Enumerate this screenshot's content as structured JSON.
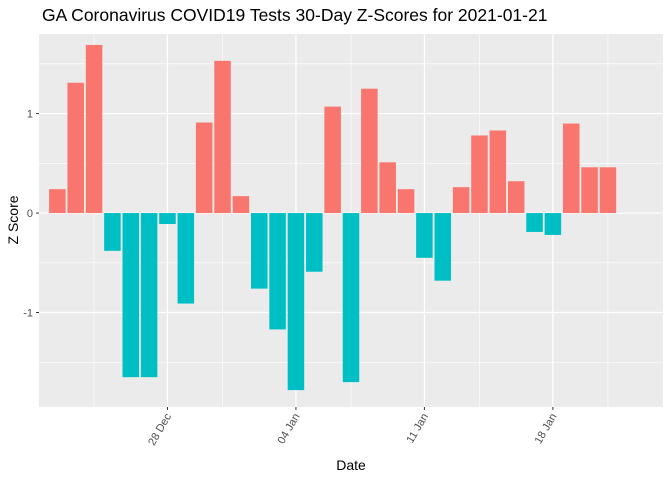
{
  "chart_data": {
    "type": "bar",
    "title": "GA Coronavirus COVID19 Tests 30-Day Z-Scores for 2021-01-21",
    "xlabel": "Date",
    "ylabel": "Z Score",
    "ylim": [
      -1.95,
      1.8
    ],
    "y_ticks": [
      -1,
      0,
      1
    ],
    "y_tick_labels": [
      "-1",
      "0",
      "1"
    ],
    "x_ticks": [
      "2020-12-28",
      "2021-01-04",
      "2021-01-11",
      "2021-01-18"
    ],
    "x_tick_labels": [
      "28 Dec",
      "04 Jan",
      "11 Jan",
      "18 Jan"
    ],
    "x_range": [
      "2020-12-21",
      "2021-01-24"
    ],
    "grid": true,
    "legend": "none",
    "colors": {
      "positive": "#F8766D",
      "negative": "#00BFC4",
      "panel": "#EBEBEB",
      "grid": "#FFFFFF"
    },
    "x": [
      "2020-12-22",
      "2020-12-23",
      "2020-12-24",
      "2020-12-25",
      "2020-12-26",
      "2020-12-27",
      "2020-12-28",
      "2020-12-29",
      "2020-12-30",
      "2020-12-31",
      "2021-01-01",
      "2021-01-02",
      "2021-01-03",
      "2021-01-04",
      "2021-01-05",
      "2021-01-06",
      "2021-01-07",
      "2021-01-08",
      "2021-01-09",
      "2021-01-10",
      "2021-01-11",
      "2021-01-12",
      "2021-01-13",
      "2021-01-14",
      "2021-01-15",
      "2021-01-16",
      "2021-01-17",
      "2021-01-18",
      "2021-01-19",
      "2021-01-20",
      "2021-01-21"
    ],
    "values": [
      0.24,
      1.31,
      1.69,
      -0.38,
      -1.65,
      -1.65,
      -0.11,
      -0.91,
      0.91,
      1.53,
      0.17,
      -0.76,
      -1.17,
      -1.78,
      -0.59,
      1.07,
      -1.7,
      1.25,
      0.51,
      0.24,
      -0.45,
      -0.68,
      0.26,
      0.78,
      0.83,
      0.32,
      -0.19,
      -0.22,
      0.9,
      0.46,
      0.46
    ]
  }
}
